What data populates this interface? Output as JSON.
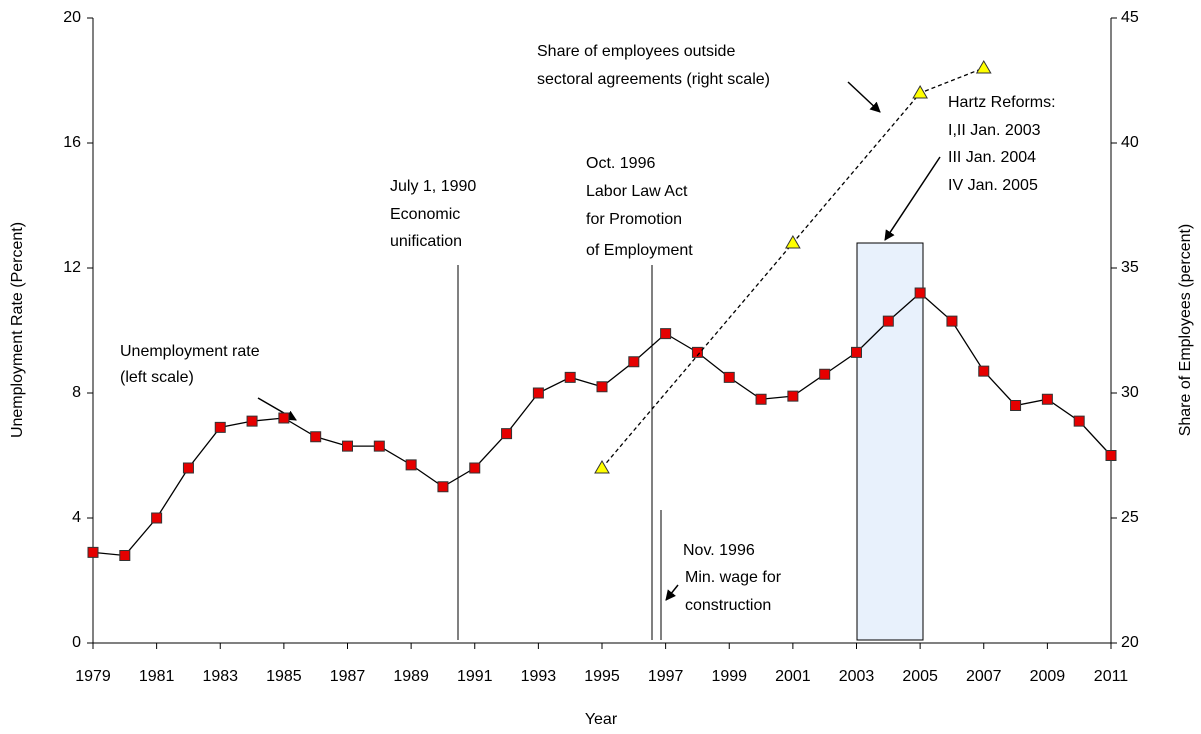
{
  "chart_data": {
    "type": "line",
    "x_label": "Year",
    "y_label": "Unemployment Rate (Percent)",
    "y2_label": "Share of Employees (percent)",
    "xlim": [
      1979,
      2011
    ],
    "xticks": [
      1979,
      1981,
      1983,
      1985,
      1987,
      1989,
      1991,
      1993,
      1995,
      1997,
      1999,
      2001,
      2003,
      2005,
      2007,
      2009,
      2011
    ],
    "ylim": [
      0,
      20
    ],
    "yticks": [
      0,
      4,
      8,
      12,
      16,
      20
    ],
    "y2lim": [
      20,
      45
    ],
    "y2ticks": [
      20,
      25,
      30,
      35,
      40,
      45
    ],
    "series": [
      {
        "name": "Unemployment rate",
        "color": "#e60000",
        "marker": "square",
        "line_style": "solid",
        "x": [
          1979,
          1980,
          1981,
          1982,
          1983,
          1984,
          1985,
          1986,
          1987,
          1988,
          1989,
          1990,
          1991,
          1992,
          1993,
          1994,
          1995,
          1996,
          1997,
          1998,
          1999,
          2000,
          2001,
          2002,
          2003,
          2004,
          2005,
          2006,
          2007,
          2008,
          2009,
          2010,
          2011
        ],
        "values": [
          2.9,
          2.8,
          4.0,
          5.6,
          6.9,
          7.1,
          7.2,
          6.6,
          6.3,
          6.3,
          5.7,
          5.0,
          5.6,
          6.7,
          8.0,
          8.5,
          8.2,
          9.0,
          9.9,
          9.3,
          8.5,
          7.8,
          7.9,
          8.6,
          9.3,
          10.3,
          11.2,
          10.3,
          8.7,
          7.6,
          7.8,
          7.1,
          6.0
        ]
      },
      {
        "name": "Share of employees outside sectoral agreements",
        "color": "#ffff00",
        "marker": "triangle",
        "line_style": "dashed",
        "axis": "y2",
        "x": [
          1995,
          2001,
          2005,
          2007
        ],
        "values": [
          27,
          36,
          42,
          43
        ]
      }
    ],
    "annotations": [
      {
        "lines": [
          "Unemployment rate",
          "(left scale)"
        ]
      },
      {
        "lines": [
          "Share of employees outside",
          "sectoral agreements (right scale)"
        ]
      },
      {
        "lines": [
          "July 1, 1990",
          "Economic",
          "unification"
        ]
      },
      {
        "lines": [
          "Oct. 1996",
          "Labor Law Act",
          "for Promotion",
          "of Employment"
        ]
      },
      {
        "lines": [
          "Nov. 1996",
          "Min. wage for",
          "construction"
        ]
      },
      {
        "lines": [
          "Hartz Reforms:",
          "I,II  Jan. 2003",
          "III Jan. 2004",
          "IV Jan. 2005"
        ]
      }
    ]
  }
}
